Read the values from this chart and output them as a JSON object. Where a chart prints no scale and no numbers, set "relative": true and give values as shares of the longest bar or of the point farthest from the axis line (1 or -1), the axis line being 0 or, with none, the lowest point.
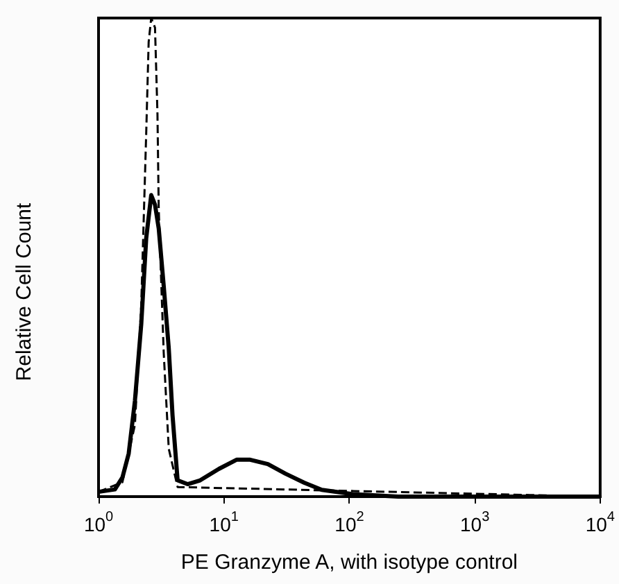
{
  "chart_data": {
    "type": "line",
    "relative": true,
    "log": "x",
    "xlabel": "PE Granzyme A, with isotype control",
    "ylabel": "Relative Cell Count",
    "xlim": [
      1,
      10000
    ],
    "xticks": [
      {
        "value": 1,
        "label": "10$^{0}$"
      },
      {
        "value": 10,
        "label": "10$^{1}$"
      },
      {
        "value": 100,
        "label": "10$^{2}$"
      },
      {
        "value": 1000,
        "label": "10$^{3}$"
      },
      {
        "value": 10000,
        "label": "10$^{4}$"
      }
    ],
    "marker": "none",
    "grid": false,
    "series": [
      {
        "color": "#000000",
        "line_style": "dashed",
        "x": [
          1,
          1.55,
          1.95,
          2.19,
          2.4,
          2.51,
          2.63,
          2.82,
          2.95,
          3.02,
          3.16,
          3.31,
          3.63,
          4.27,
          10000
        ],
        "values": [
          0.01,
          0.03,
          0.15,
          0.4,
          0.76,
          0.95,
          1.0,
          0.98,
          0.8,
          0.6,
          0.45,
          0.3,
          0.1,
          0.02,
          0
        ]
      },
      {
        "color": "#000000",
        "line_style": "solid",
        "x": [
          1,
          1.35,
          1.55,
          1.74,
          1.95,
          2.19,
          2.4,
          2.63,
          2.82,
          3.02,
          3.31,
          3.63,
          3.89,
          4.27,
          5.13,
          6.46,
          9.12,
          12.6,
          16.2,
          22.4,
          30.9,
          43.7,
          60.3,
          107,
          245,
          10000
        ],
        "values": [
          0.01,
          0.015,
          0.04,
          0.09,
          0.2,
          0.36,
          0.54,
          0.63,
          0.61,
          0.56,
          0.44,
          0.31,
          0.17,
          0.034,
          0.026,
          0.034,
          0.058,
          0.077,
          0.077,
          0.068,
          0.048,
          0.029,
          0.014,
          0.005,
          0,
          0
        ]
      }
    ]
  }
}
